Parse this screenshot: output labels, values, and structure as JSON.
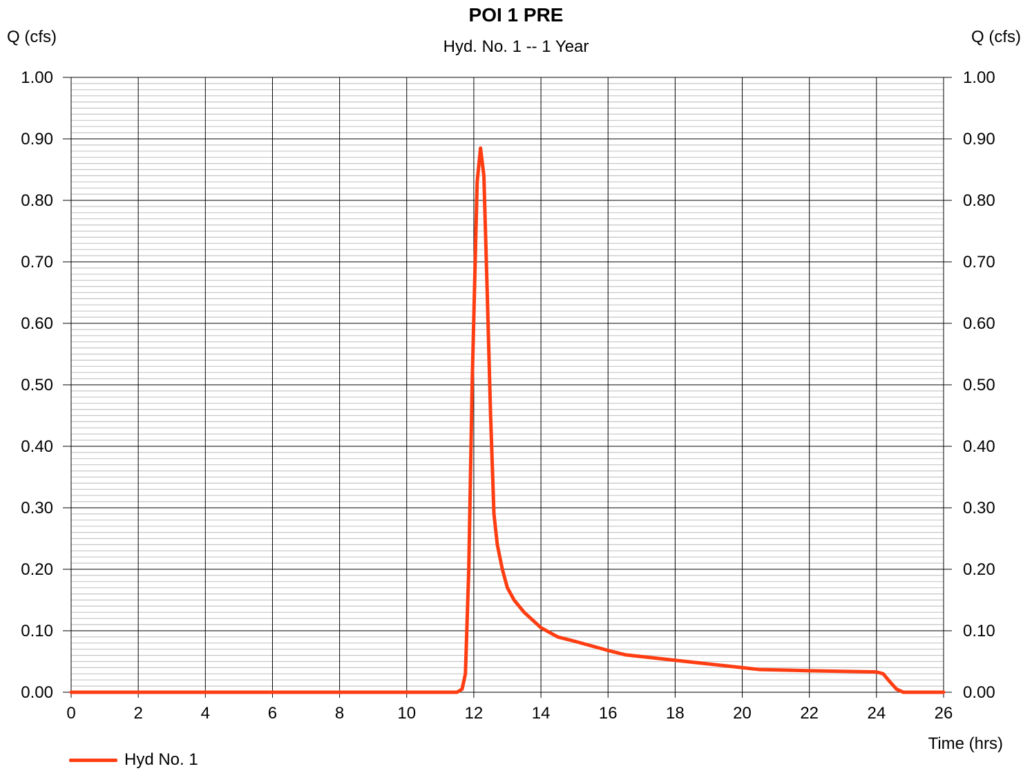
{
  "chart_data": {
    "type": "line",
    "title": "POI 1 PRE",
    "subtitle": "Hyd. No. 1 -- 1 Year",
    "ylabel_left": "Q (cfs)",
    "ylabel_right": "Q (cfs)",
    "xlabel": "Time (hrs)",
    "xlim": [
      0,
      26
    ],
    "ylim": [
      0,
      1
    ],
    "x_ticks": [
      0,
      2,
      4,
      6,
      8,
      10,
      12,
      14,
      16,
      18,
      20,
      22,
      24,
      26
    ],
    "x_tick_labels": [
      "0",
      "2",
      "4",
      "6",
      "8",
      "10",
      "12",
      "14",
      "16",
      "18",
      "20",
      "22",
      "24",
      "26"
    ],
    "y_ticks": [
      0,
      0.1,
      0.2,
      0.3,
      0.4,
      0.5,
      0.6,
      0.7,
      0.8,
      0.9,
      1.0
    ],
    "y_tick_labels": [
      "0.00",
      "0.10",
      "0.20",
      "0.30",
      "0.40",
      "0.50",
      "0.60",
      "0.70",
      "0.80",
      "0.90",
      "1.00"
    ],
    "minor_y_step": 0.01,
    "grid": true,
    "legend_position": "bottom-left",
    "series": [
      {
        "name": "Hyd No. 1",
        "color": "#ff3d12",
        "points": [
          [
            0,
            0
          ],
          [
            11.5,
            0
          ],
          [
            11.65,
            0.005
          ],
          [
            11.75,
            0.03
          ],
          [
            11.85,
            0.2
          ],
          [
            11.95,
            0.5
          ],
          [
            12.05,
            0.72
          ],
          [
            12.1,
            0.83
          ],
          [
            12.2,
            0.885
          ],
          [
            12.3,
            0.84
          ],
          [
            12.4,
            0.65
          ],
          [
            12.5,
            0.45
          ],
          [
            12.6,
            0.29
          ],
          [
            12.7,
            0.24
          ],
          [
            12.85,
            0.2
          ],
          [
            13.0,
            0.17
          ],
          [
            13.2,
            0.15
          ],
          [
            13.5,
            0.13
          ],
          [
            14.0,
            0.105
          ],
          [
            14.5,
            0.09
          ],
          [
            15.0,
            0.083
          ],
          [
            16.0,
            0.068
          ],
          [
            16.5,
            0.061
          ],
          [
            17.0,
            0.058
          ],
          [
            18.0,
            0.052
          ],
          [
            19.0,
            0.046
          ],
          [
            20.0,
            0.04
          ],
          [
            20.5,
            0.037
          ],
          [
            22.0,
            0.035
          ],
          [
            23.0,
            0.034
          ],
          [
            24.0,
            0.033
          ],
          [
            24.2,
            0.03
          ],
          [
            24.4,
            0.017
          ],
          [
            24.6,
            0.005
          ],
          [
            24.8,
            0
          ],
          [
            26,
            0
          ]
        ]
      }
    ]
  }
}
